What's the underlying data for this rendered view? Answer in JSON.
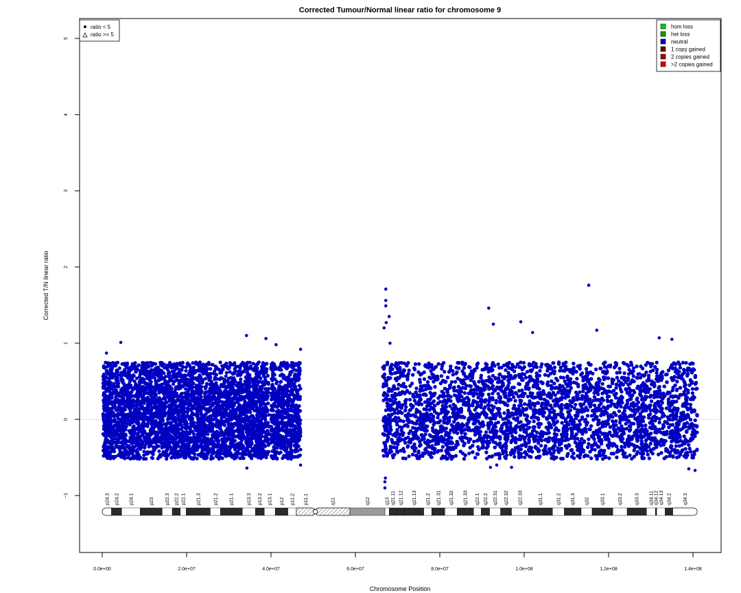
{
  "chart_data": {
    "type": "scatter",
    "title": "Corrected Tumour/Normal linear ratio for chromosome  9",
    "xlabel": "Chromosome Position",
    "ylabel": "Corrected T/N linear ratio",
    "xlim": [
      0,
      141000000
    ],
    "ylim": [
      -1.7,
      5.2
    ],
    "x_ticks": [
      0,
      20000000,
      40000000,
      60000000,
      80000000,
      100000000,
      120000000,
      140000000
    ],
    "x_tick_labels": [
      "0.0e+00",
      "2.0e+07",
      "4.0e+07",
      "6.0e+07",
      "8.0e+07",
      "1.0e+08",
      "1.2e+08",
      "1.4e+08"
    ],
    "y_ticks": [
      -1,
      0,
      1,
      2,
      3,
      4,
      5
    ],
    "y_tick_labels": [
      "−1",
      "0",
      "1",
      "2",
      "3",
      "4",
      "5"
    ],
    "reference_line": {
      "y": 0,
      "style": "dotted",
      "color": "#888888"
    },
    "point_color": "#0000c0",
    "series": [
      {
        "name": "ratio < 5",
        "x_ranges_mb": [
          [
            0.2,
            39.5
          ],
          [
            40,
            47
          ],
          [
            66.5,
            141
          ]
        ],
        "core_band": [
          -0.3,
          0.45
        ],
        "outliers": [
          {
            "x": 1.0,
            "y": 0.87
          },
          {
            "x": 4.4,
            "y": 1.01
          },
          {
            "x": 34.2,
            "y": 1.1
          },
          {
            "x": 38.8,
            "y": 1.06
          },
          {
            "x": 41.2,
            "y": 0.98
          },
          {
            "x": 47.0,
            "y": 0.92
          },
          {
            "x": 66.8,
            "y": 1.2
          },
          {
            "x": 67.2,
            "y": 1.71
          },
          {
            "x": 67.2,
            "y": 1.56
          },
          {
            "x": 67.2,
            "y": 1.49
          },
          {
            "x": 67.3,
            "y": 1.27
          },
          {
            "x": 68.0,
            "y": 1.35
          },
          {
            "x": 68.2,
            "y": 1.0
          },
          {
            "x": 91.6,
            "y": 1.46
          },
          {
            "x": 92.7,
            "y": 1.25
          },
          {
            "x": 99.2,
            "y": 1.28
          },
          {
            "x": 102.0,
            "y": 1.14
          },
          {
            "x": 115.3,
            "y": 1.76
          },
          {
            "x": 117.2,
            "y": 1.17
          },
          {
            "x": 135.0,
            "y": 1.05
          },
          {
            "x": 132.0,
            "y": 1.07
          },
          {
            "x": 34.3,
            "y": -0.64
          },
          {
            "x": 47.0,
            "y": -0.6
          },
          {
            "x": 67.0,
            "y": -0.9
          },
          {
            "x": 67.0,
            "y": -0.82
          },
          {
            "x": 67.1,
            "y": -0.77
          },
          {
            "x": 92.0,
            "y": -0.63
          },
          {
            "x": 97.0,
            "y": -0.63
          },
          {
            "x": 140.5,
            "y": -0.67
          },
          {
            "x": 139.0,
            "y": -0.65
          },
          {
            "x": 93.5,
            "y": -0.6
          }
        ]
      }
    ],
    "legend_left": {
      "position": "top-left",
      "entries": [
        {
          "symbol": "dot",
          "label": "ratio < 5"
        },
        {
          "symbol": "triangle",
          "label": "ratio >= 5"
        }
      ]
    },
    "legend_right": {
      "position": "top-right",
      "entries": [
        {
          "label": "hom loss",
          "color": "#00d000"
        },
        {
          "label": "het loss",
          "color": "#00a000"
        },
        {
          "label": "neutral",
          "color": "#0000c0"
        },
        {
          "label": "1 copy gained",
          "color": "#700000"
        },
        {
          "label": "2 copies gained",
          "color": "#a00000"
        },
        {
          "label": ">2 copies gained",
          "color": "#e00000"
        }
      ]
    },
    "ideogram": {
      "bands": [
        {
          "name": "p24.3",
          "start": 0,
          "end": 2.2,
          "stain": "gneg"
        },
        {
          "name": "p24.2",
          "start": 2.2,
          "end": 4.6,
          "stain": "gpos"
        },
        {
          "name": "p24.1",
          "start": 4.6,
          "end": 9.0,
          "stain": "gneg"
        },
        {
          "name": "p23",
          "start": 9.0,
          "end": 14.2,
          "stain": "gpos"
        },
        {
          "name": "p22.3",
          "start": 14.2,
          "end": 16.6,
          "stain": "gneg"
        },
        {
          "name": "p22.2",
          "start": 16.6,
          "end": 18.5,
          "stain": "gpos"
        },
        {
          "name": "p22.1",
          "start": 18.5,
          "end": 19.9,
          "stain": "gneg"
        },
        {
          "name": "p21.3",
          "start": 19.9,
          "end": 25.6,
          "stain": "gpos"
        },
        {
          "name": "p21.2",
          "start": 25.6,
          "end": 28.0,
          "stain": "gneg"
        },
        {
          "name": "p21.1",
          "start": 28.0,
          "end": 33.2,
          "stain": "gpos"
        },
        {
          "name": "p13.3",
          "start": 33.2,
          "end": 36.3,
          "stain": "gneg"
        },
        {
          "name": "p13.2",
          "start": 36.3,
          "end": 38.4,
          "stain": "gpos"
        },
        {
          "name": "p13.1",
          "start": 38.4,
          "end": 41.0,
          "stain": "gneg"
        },
        {
          "name": "p12",
          "start": 41.0,
          "end": 44.0,
          "stain": "gpos"
        },
        {
          "name": "p11.2",
          "start": 44.0,
          "end": 46.0,
          "stain": "gneg"
        },
        {
          "name": "p11.1",
          "start": 46.0,
          "end": 50.5,
          "stain": "acen"
        },
        {
          "name": "q11",
          "start": 50.5,
          "end": 58.7,
          "stain": "acen"
        },
        {
          "name": "q12",
          "start": 58.7,
          "end": 67.0,
          "stain": "gvar"
        },
        {
          "name": "q13",
          "start": 67.0,
          "end": 68.0,
          "stain": "gneg"
        },
        {
          "name": "q21.11",
          "start": 68.0,
          "end": 69.8,
          "stain": "gpos"
        },
        {
          "name": "q21.12",
          "start": 69.8,
          "end": 71.6,
          "stain": "gpos"
        },
        {
          "name": "q21.13",
          "start": 71.6,
          "end": 76.2,
          "stain": "gpos"
        },
        {
          "name": "q21.2",
          "start": 76.2,
          "end": 78.1,
          "stain": "gneg"
        },
        {
          "name": "q21.31",
          "start": 78.1,
          "end": 81.2,
          "stain": "gpos"
        },
        {
          "name": "q21.32",
          "start": 81.2,
          "end": 84.1,
          "stain": "gneg"
        },
        {
          "name": "q21.33",
          "start": 84.1,
          "end": 88.0,
          "stain": "gpos"
        },
        {
          "name": "q22.1",
          "start": 88.0,
          "end": 89.8,
          "stain": "gneg"
        },
        {
          "name": "q22.2",
          "start": 89.8,
          "end": 91.8,
          "stain": "gpos"
        },
        {
          "name": "q22.31",
          "start": 91.8,
          "end": 94.4,
          "stain": "gneg"
        },
        {
          "name": "q22.32",
          "start": 94.4,
          "end": 97.0,
          "stain": "gpos"
        },
        {
          "name": "q22.33",
          "start": 97.0,
          "end": 101.0,
          "stain": "gneg"
        },
        {
          "name": "q31.1",
          "start": 101.0,
          "end": 106.7,
          "stain": "gpos"
        },
        {
          "name": "q31.2",
          "start": 106.7,
          "end": 109.5,
          "stain": "gneg"
        },
        {
          "name": "q31.3",
          "start": 109.5,
          "end": 113.5,
          "stain": "gpos"
        },
        {
          "name": "q32",
          "start": 113.5,
          "end": 116.1,
          "stain": "gneg"
        },
        {
          "name": "q33.1",
          "start": 116.1,
          "end": 121.0,
          "stain": "gpos"
        },
        {
          "name": "q33.2",
          "start": 121.0,
          "end": 124.4,
          "stain": "gneg"
        },
        {
          "name": "q33.3",
          "start": 124.4,
          "end": 129.0,
          "stain": "gpos"
        },
        {
          "name": "q34.11",
          "start": 129.0,
          "end": 131.1,
          "stain": "gneg"
        },
        {
          "name": "q34.12",
          "start": 131.1,
          "end": 131.4,
          "stain": "gpos"
        },
        {
          "name": "q34.13",
          "start": 131.4,
          "end": 133.4,
          "stain": "gneg"
        },
        {
          "name": "q34.2",
          "start": 133.4,
          "end": 135.2,
          "stain": "gpos"
        },
        {
          "name": "q34.3",
          "start": 135.2,
          "end": 141.0,
          "stain": "gneg"
        }
      ]
    }
  }
}
